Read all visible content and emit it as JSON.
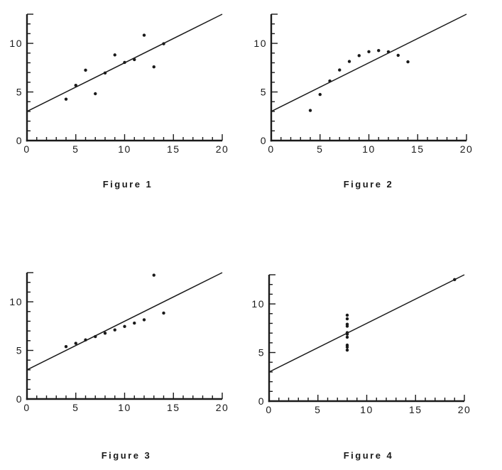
{
  "colors": {
    "background": "#ffffff",
    "ink": "#1a1a1a"
  },
  "chart_data": [
    {
      "type": "scatter",
      "caption": "Figure 1",
      "title": "",
      "xlabel": "",
      "ylabel": "",
      "xlim": [
        0,
        20
      ],
      "ylim": [
        0,
        13
      ],
      "grid": false,
      "legend": null,
      "x_labeled_ticks": [
        0,
        5,
        10,
        15,
        20
      ],
      "y_labeled_ticks": [
        0,
        5,
        10
      ],
      "x_long_ticks": [
        5,
        10,
        15,
        20
      ],
      "y_long_ticks": [
        5,
        10,
        13
      ],
      "x_minor_step": 1,
      "y_minor_step": 1,
      "points": [
        [
          4,
          4.26
        ],
        [
          5,
          5.68
        ],
        [
          6,
          7.24
        ],
        [
          7,
          4.82
        ],
        [
          8,
          6.95
        ],
        [
          9,
          8.81
        ],
        [
          10,
          8.04
        ],
        [
          11,
          8.33
        ],
        [
          12,
          10.84
        ],
        [
          13,
          7.58
        ],
        [
          14,
          9.96
        ]
      ],
      "fit_line": {
        "slope": 0.5,
        "intercept": 3,
        "x_start": 0,
        "x_end": 20
      }
    },
    {
      "type": "scatter",
      "caption": "Figure 2",
      "title": "",
      "xlabel": "",
      "ylabel": "",
      "xlim": [
        0,
        20
      ],
      "ylim": [
        0,
        13
      ],
      "grid": false,
      "legend": null,
      "x_labeled_ticks": [
        0,
        5,
        10,
        15,
        20
      ],
      "y_labeled_ticks": [
        0,
        5,
        10
      ],
      "x_long_ticks": [
        5,
        10,
        15,
        20
      ],
      "y_long_ticks": [
        5,
        10,
        13
      ],
      "x_minor_step": 1,
      "y_minor_step": 1,
      "points": [
        [
          4,
          3.1
        ],
        [
          5,
          4.74
        ],
        [
          6,
          6.13
        ],
        [
          7,
          7.26
        ],
        [
          8,
          8.14
        ],
        [
          9,
          8.74
        ],
        [
          10,
          9.14
        ],
        [
          11,
          9.26
        ],
        [
          12,
          9.13
        ],
        [
          13,
          8.77
        ],
        [
          14,
          8.1
        ]
      ],
      "fit_line": {
        "slope": 0.5,
        "intercept": 3,
        "x_start": 0,
        "x_end": 20
      }
    },
    {
      "type": "scatter",
      "caption": "Figure 3",
      "title": "",
      "xlabel": "",
      "ylabel": "",
      "xlim": [
        0,
        20
      ],
      "ylim": [
        0,
        13
      ],
      "grid": false,
      "legend": null,
      "x_labeled_ticks": [
        0,
        5,
        10,
        15,
        20
      ],
      "y_labeled_ticks": [
        0,
        5,
        10
      ],
      "x_long_ticks": [
        5,
        10,
        15,
        20
      ],
      "y_long_ticks": [
        5,
        10,
        13
      ],
      "x_minor_step": 1,
      "y_minor_step": 1,
      "points": [
        [
          4,
          5.39
        ],
        [
          5,
          5.73
        ],
        [
          6,
          6.08
        ],
        [
          7,
          6.42
        ],
        [
          8,
          6.77
        ],
        [
          9,
          7.11
        ],
        [
          10,
          7.46
        ],
        [
          11,
          7.81
        ],
        [
          12,
          8.15
        ],
        [
          13,
          12.74
        ],
        [
          14,
          8.84
        ]
      ],
      "fit_line": {
        "slope": 0.5,
        "intercept": 3,
        "x_start": 0,
        "x_end": 20
      }
    },
    {
      "type": "scatter",
      "caption": "Figure 4",
      "title": "",
      "xlabel": "",
      "ylabel": "",
      "xlim": [
        0,
        20
      ],
      "ylim": [
        0,
        13
      ],
      "grid": false,
      "legend": null,
      "x_labeled_ticks": [
        0,
        5,
        10,
        15,
        20
      ],
      "y_labeled_ticks": [
        0,
        5,
        10
      ],
      "x_long_ticks": [
        5,
        10,
        15,
        20
      ],
      "y_long_ticks": [
        5,
        10,
        13
      ],
      "x_minor_step": 1,
      "y_minor_step": 1,
      "points": [
        [
          8,
          5.25
        ],
        [
          8,
          5.56
        ],
        [
          8,
          5.76
        ],
        [
          8,
          6.58
        ],
        [
          8,
          6.89
        ],
        [
          8,
          7.04
        ],
        [
          8,
          7.71
        ],
        [
          8,
          7.91
        ],
        [
          8,
          8.47
        ],
        [
          8,
          8.84
        ],
        [
          19,
          12.5
        ]
      ],
      "fit_line": {
        "slope": 0.5,
        "intercept": 3,
        "x_start": 0,
        "x_end": 20
      }
    }
  ]
}
